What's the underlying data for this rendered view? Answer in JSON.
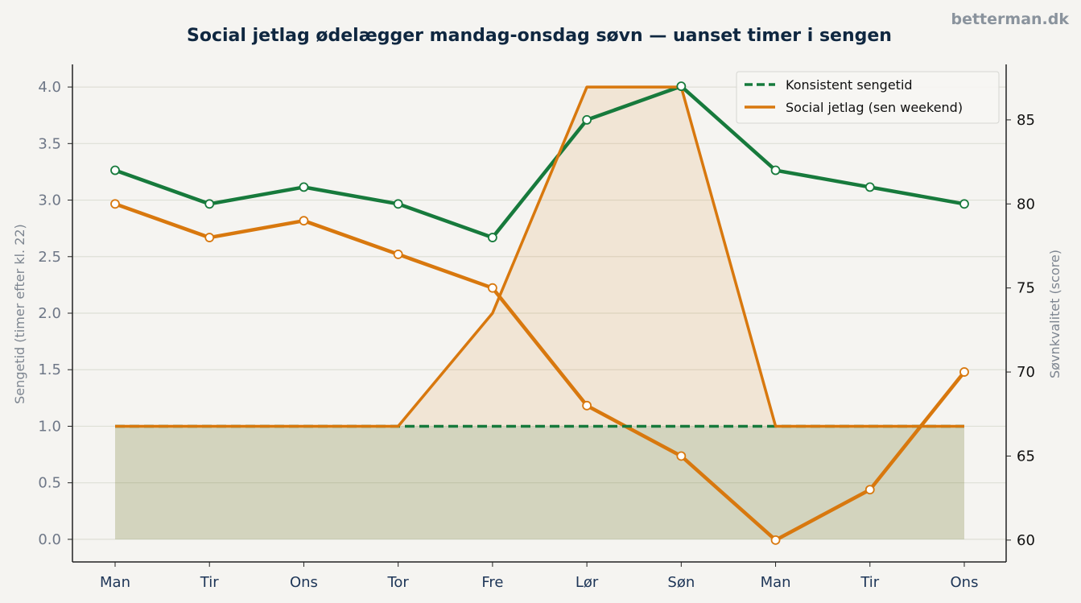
{
  "brand": "betterman.dk",
  "chart_data": {
    "type": "line",
    "title": "Social jetlag ødelægger mandag-onsdag søvn — uanset timer i sengen",
    "categories": [
      "Man",
      "Tir",
      "Ons",
      "Tor",
      "Fre",
      "Lør",
      "Søn",
      "Man",
      "Tir",
      "Ons"
    ],
    "ylabel_left": "Sengetid (timer efter kl. 22)",
    "ylabel_right": "Søvnkvalitet (score)",
    "ylim_left": [
      -0.2,
      4.2
    ],
    "ylim_right": [
      58.7,
      88.3
    ],
    "yticks_left": [
      "0.0",
      "0.5",
      "1.0",
      "1.5",
      "2.0",
      "2.5",
      "3.0",
      "3.5",
      "4.0"
    ],
    "yticks_right": [
      "60",
      "65",
      "70",
      "75",
      "80",
      "85"
    ],
    "grid": "horizontal",
    "legend_position": "top-right",
    "bedtime_series": [
      {
        "name": "Konsistent sengetid",
        "color": "#177a3c",
        "style": "dashed",
        "axis": "left",
        "values": [
          1,
          1,
          1,
          1,
          1,
          1,
          1,
          1,
          1,
          1
        ]
      },
      {
        "name": "Social jetlag (sen weekend)",
        "color": "#d8780e",
        "style": "solid",
        "axis": "left",
        "values": [
          1,
          1,
          1,
          1,
          2,
          4,
          4,
          1,
          1,
          1
        ]
      }
    ],
    "quality_series": [
      {
        "color": "#177a3c",
        "axis": "right",
        "values": [
          82,
          80,
          81,
          80,
          78,
          85,
          87,
          82,
          81,
          80
        ]
      },
      {
        "color": "#d8780e",
        "axis": "right",
        "values": [
          80,
          78,
          79,
          77,
          75,
          68,
          65,
          60,
          63,
          70
        ]
      }
    ]
  }
}
